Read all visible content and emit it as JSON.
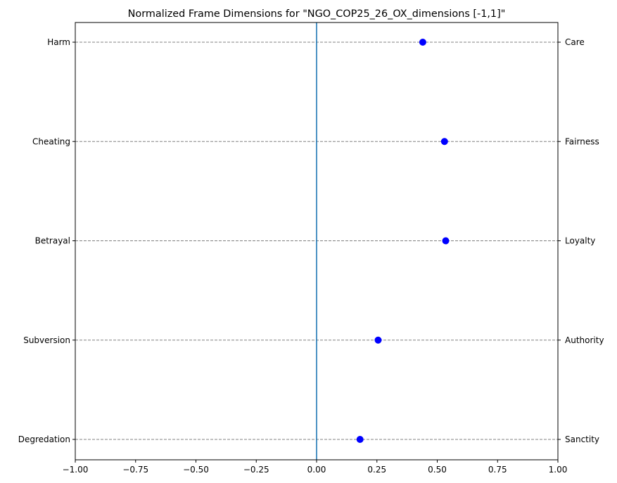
{
  "chart_data": {
    "type": "scatter",
    "title": "Normalized Frame Dimensions for \"NGO_COP25_26_OX_dimensions [-1,1]\"",
    "xlim": [
      -1.0,
      1.0
    ],
    "x_ticks": [
      "−1.00",
      "−0.75",
      "−0.50",
      "−0.25",
      "0.00",
      "0.25",
      "0.50",
      "0.75",
      "1.00"
    ],
    "x_tick_values": [
      -1.0,
      -0.75,
      -0.5,
      -0.25,
      0.0,
      0.25,
      0.5,
      0.75,
      1.0
    ],
    "left_labels": [
      "Harm",
      "Cheating",
      "Betrayal",
      "Subversion",
      "Degredation"
    ],
    "right_labels": [
      "Care",
      "Fairness",
      "Loyalty",
      "Authority",
      "Sanctity"
    ],
    "values": [
      0.44,
      0.53,
      0.535,
      0.255,
      0.18
    ],
    "zero_line": 0.0,
    "grid": "horizontal dashed",
    "colors": {
      "points": "#0000ff",
      "zero_line": "#1f77b4",
      "grid": "#808080"
    }
  }
}
